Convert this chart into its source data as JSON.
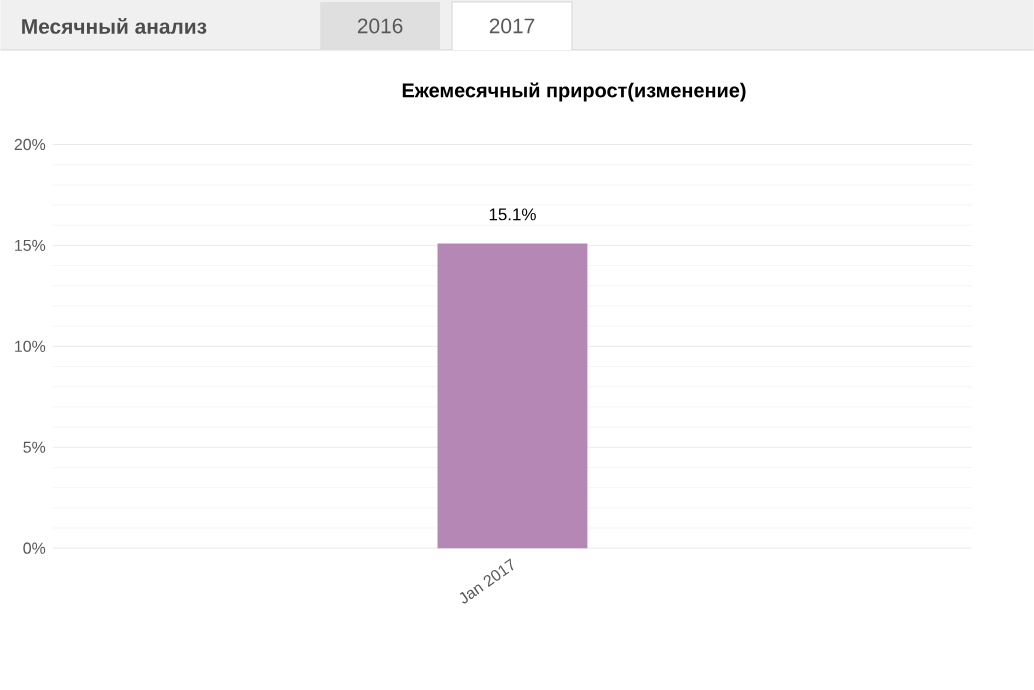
{
  "chart_data": {
    "type": "bar",
    "title": "Ежемесячный прирост(изменение)",
    "annotations": [
      "Месячный анализ",
      "2016",
      "2017"
    ],
    "categories": [
      "Jan 2017"
    ],
    "values": [
      15.1
    ],
    "color": "#b587b5",
    "value_labels": [
      "15.1%"
    ],
    "ylim": [
      0,
      20
    ],
    "yticks": [
      {
        "value": 0,
        "label": "0%"
      },
      {
        "value": 5,
        "label": "5%"
      },
      {
        "value": 10,
        "label": "10%"
      },
      {
        "value": 15,
        "label": "15%"
      },
      {
        "value": 20,
        "label": "20%"
      }
    ],
    "grid": "y"
  }
}
